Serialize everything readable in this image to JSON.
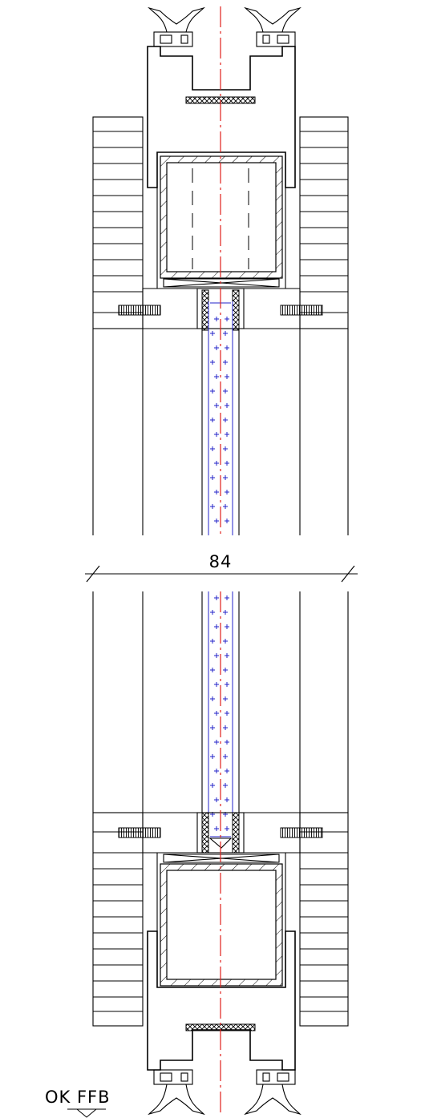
{
  "drawing": {
    "dimension_label": "84",
    "level_label": "OK FFB",
    "colors": {
      "line": "#000000",
      "center_axis": "#e0201c",
      "glazing": "#2323c8",
      "background": "#ffffff"
    },
    "icons": [
      "hatch-pattern",
      "crosshatch-seal",
      "level-triangle"
    ]
  }
}
